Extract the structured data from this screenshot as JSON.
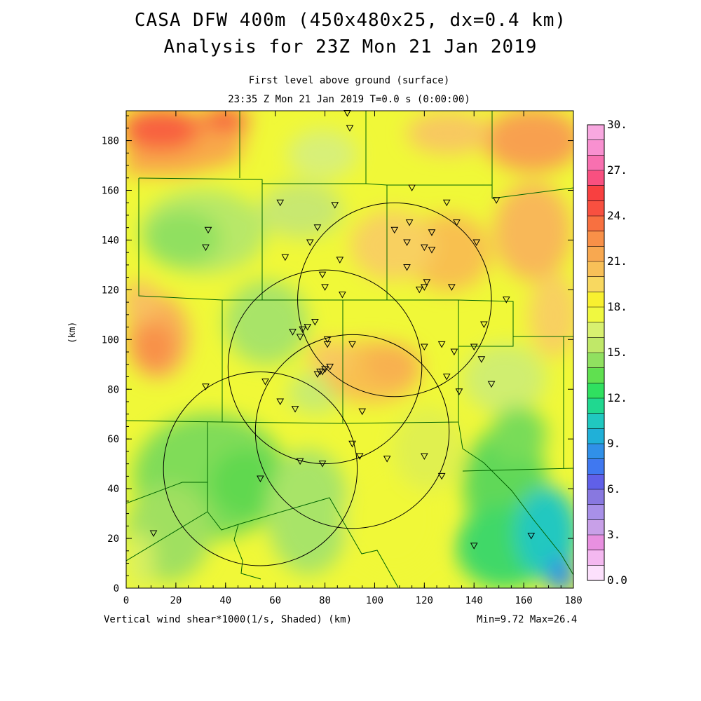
{
  "title_line1": "CASA DFW 400m (450x480x25, dx=0.4 km)",
  "title_line2": "Analysis for 23Z Mon 21 Jan 2019",
  "subtitle_line1": "First level above ground (surface)",
  "subtitle_line2": "23:35 Z Mon 21 Jan 2019    T=0.0 s (0:00:00)",
  "footer_left": "Vertical wind shear*1000(1/s, Shaded)  (km)",
  "footer_right": "Min=9.72 Max=26.4",
  "chart_data": {
    "type": "heatmap",
    "xlabel": "",
    "ylabel": "(km)",
    "xlim": [
      0,
      180
    ],
    "ylim": [
      0,
      192
    ],
    "x_ticks": [
      "0",
      "20",
      "40",
      "60",
      "80",
      "100",
      "120",
      "140",
      "160",
      "180"
    ],
    "y_ticks": [
      "0",
      "20",
      "40",
      "60",
      "80",
      "100",
      "120",
      "140",
      "160",
      "180"
    ],
    "colorbar": {
      "range": [
        0,
        30
      ],
      "step": 1.5,
      "labels": [
        "0.0",
        "3.",
        "6.",
        "9.",
        "12.",
        "15.",
        "18.",
        "21.",
        "24.",
        "27.",
        "30."
      ],
      "colors": [
        "#fce0fc",
        "#f4b8f0",
        "#e890e0",
        "#c8a0e8",
        "#a890e8",
        "#8878e0",
        "#6060e8",
        "#4078f0",
        "#3090e8",
        "#20b0d8",
        "#20c8c0",
        "#20d890",
        "#30e060",
        "#60e050",
        "#90e060",
        "#c0e868",
        "#d8f070",
        "#f0f840",
        "#f8f030",
        "#f8d860",
        "#f8c058",
        "#f8a850",
        "#f89048",
        "#f87040",
        "#f85040",
        "#f84040",
        "#f85080",
        "#f870b0",
        "#f890d0",
        "#f8a8e0"
      ]
    },
    "min": 9.72,
    "max": 26.4,
    "radar_circles": [
      {
        "cx_km": 108,
        "cy_km": 116,
        "r_km": 39
      },
      {
        "cx_km": 80,
        "cy_km": 89,
        "r_km": 39
      },
      {
        "cx_km": 91,
        "cy_km": 63,
        "r_km": 39
      },
      {
        "cx_km": 54,
        "cy_km": 48,
        "r_km": 39
      }
    ],
    "stations_km": [
      [
        89,
        191
      ],
      [
        90,
        185
      ],
      [
        115,
        161
      ],
      [
        62,
        155
      ],
      [
        149,
        156
      ],
      [
        84,
        154
      ],
      [
        129,
        155
      ],
      [
        33,
        144
      ],
      [
        32,
        137
      ],
      [
        77,
        145
      ],
      [
        108,
        144
      ],
      [
        114,
        147
      ],
      [
        123,
        143
      ],
      [
        133,
        147
      ],
      [
        74,
        139
      ],
      [
        113,
        139
      ],
      [
        120,
        137
      ],
      [
        123,
        136
      ],
      [
        141,
        139
      ],
      [
        64,
        133
      ],
      [
        86,
        132
      ],
      [
        113,
        129
      ],
      [
        79,
        126
      ],
      [
        121,
        123
      ],
      [
        120,
        121
      ],
      [
        80,
        121
      ],
      [
        118,
        120
      ],
      [
        131,
        121
      ],
      [
        87,
        118
      ],
      [
        153,
        116
      ],
      [
        76,
        107
      ],
      [
        73,
        105
      ],
      [
        71,
        104
      ],
      [
        67,
        103
      ],
      [
        70,
        101
      ],
      [
        144,
        106
      ],
      [
        81,
        100
      ],
      [
        81,
        98
      ],
      [
        91,
        98
      ],
      [
        120,
        97
      ],
      [
        127,
        98
      ],
      [
        140,
        97
      ],
      [
        132,
        95
      ],
      [
        143,
        92
      ],
      [
        78,
        87
      ],
      [
        77,
        86
      ],
      [
        79,
        87
      ],
      [
        80,
        88
      ],
      [
        82,
        89
      ],
      [
        129,
        85
      ],
      [
        147,
        82
      ],
      [
        32,
        81
      ],
      [
        56,
        83
      ],
      [
        134,
        79
      ],
      [
        62,
        75
      ],
      [
        68,
        72
      ],
      [
        95,
        71
      ],
      [
        91,
        58
      ],
      [
        94,
        53
      ],
      [
        120,
        53
      ],
      [
        105,
        52
      ],
      [
        70,
        51
      ],
      [
        79,
        50
      ],
      [
        127,
        45
      ],
      [
        54,
        44
      ],
      [
        11,
        22
      ],
      [
        163,
        21
      ],
      [
        140,
        17
      ]
    ]
  }
}
